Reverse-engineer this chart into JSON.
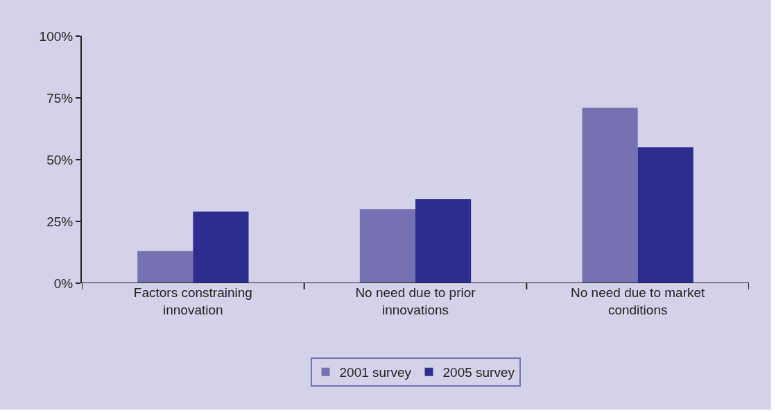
{
  "chart_data": {
    "type": "bar",
    "categories": [
      "Factors constraining innovation",
      "No need due to prior innovations",
      "No need due to market conditions"
    ],
    "series": [
      {
        "name": "2001 survey",
        "color": "#7671b2",
        "values": [
          13,
          30,
          71
        ]
      },
      {
        "name": "2005 survey",
        "color": "#2d2d8f",
        "values": [
          29,
          34,
          55
        ]
      }
    ],
    "ylim": [
      0,
      100
    ],
    "yticks": [
      {
        "value": 0,
        "label": "0%"
      },
      {
        "value": 25,
        "label": "25%"
      },
      {
        "value": 50,
        "label": "50%"
      },
      {
        "value": 75,
        "label": "75%"
      },
      {
        "value": 100,
        "label": "100%"
      }
    ],
    "grid": false,
    "legend": "bottom"
  }
}
